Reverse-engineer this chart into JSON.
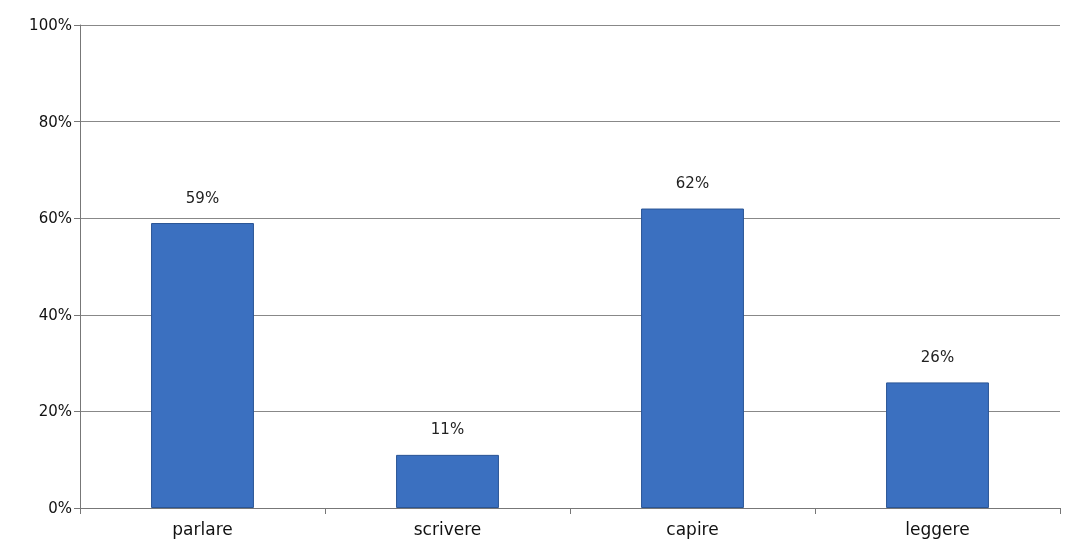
{
  "chart_data": {
    "type": "bar",
    "categories": [
      "parlare",
      "scrivere",
      "capire",
      "leggere"
    ],
    "values": [
      59,
      11,
      62,
      26
    ],
    "value_labels": [
      "59%",
      "11%",
      "62%",
      "26%"
    ],
    "color": "#3b70c0",
    "ylim": [
      0,
      100
    ],
    "yticks": [
      {
        "value": 0,
        "label": "0%"
      },
      {
        "value": 20,
        "label": "20%"
      },
      {
        "value": 40,
        "label": "40%"
      },
      {
        "value": 60,
        "label": "60%"
      },
      {
        "value": 80,
        "label": "80%"
      },
      {
        "value": 100,
        "label": "100%"
      }
    ],
    "grid": "y"
  }
}
